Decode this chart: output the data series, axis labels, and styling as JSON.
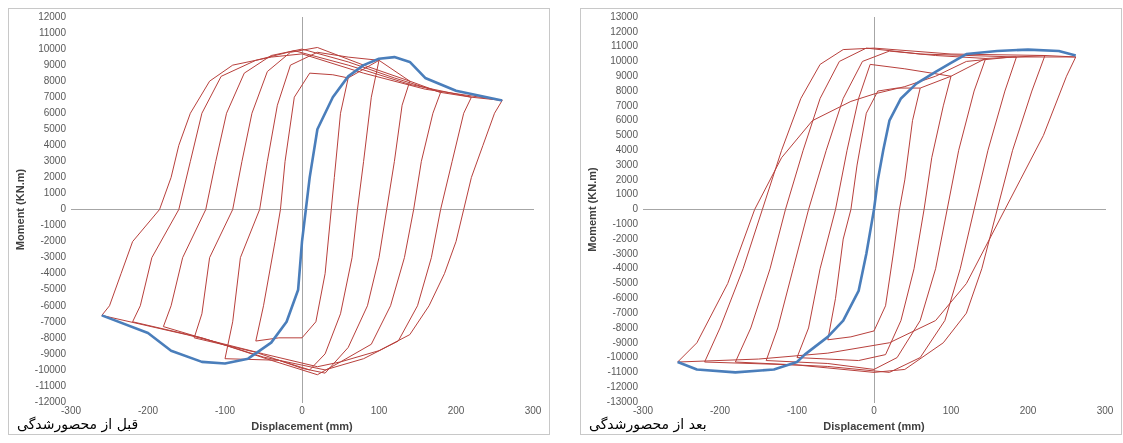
{
  "chart_data": [
    {
      "type": "line",
      "xlabel": "Displacement (mm)",
      "ylabel": "Moment (KN.m)",
      "annotations": [
        "قبل از محصورشدگی"
      ],
      "xlim": [
        -300,
        300
      ],
      "xticks": [
        -300,
        -200,
        -100,
        0,
        100,
        200,
        300
      ],
      "ylim": [
        -12000,
        12000
      ],
      "yticks": [
        -12000,
        -11000,
        -10000,
        -9000,
        -8000,
        -7000,
        -6000,
        -5000,
        -4000,
        -3000,
        -2000,
        -1000,
        0,
        1000,
        2000,
        3000,
        4000,
        5000,
        6000,
        7000,
        8000,
        9000,
        10000,
        11000,
        12000
      ],
      "series": [
        {
          "color": "#b8403c",
          "x": [
            60,
            50,
            42,
            38,
            30,
            18,
            0,
            -30,
            -60,
            -50,
            -35,
            -28,
            -22,
            -10,
            10,
            40,
            60,
            100,
            90,
            80,
            72,
            65,
            50,
            30,
            10,
            -30,
            -100,
            -90,
            -80,
            -55,
            -45,
            -32,
            -15,
            20,
            60,
            100,
            140,
            130,
            120,
            110,
            100,
            85,
            60,
            30,
            0,
            -60,
            -140,
            -130,
            -120,
            -90,
            -78,
            -65,
            -45,
            -15,
            20,
            80,
            140,
            180,
            170,
            155,
            145,
            133,
            115,
            90,
            50,
            20,
            -40,
            -110,
            -180,
            -170,
            -155,
            -125,
            -112,
            -98,
            -75,
            -40,
            0,
            60,
            120,
            180,
            220,
            210,
            195,
            180,
            168,
            150,
            125,
            80,
            30,
            -50,
            -130,
            -220,
            -210,
            -195,
            -160,
            -145,
            -130,
            -105,
            -60,
            -10,
            60,
            140,
            220,
            260,
            250,
            235,
            220,
            210,
            200,
            185,
            165,
            140,
            100,
            50,
            20,
            -50,
            -150,
            -260,
            -250,
            -235,
            -220,
            -185,
            -170,
            -160,
            -145,
            -120,
            -90,
            -40,
            0,
            80,
            160,
            260
          ],
          "values": [
            8200,
            6000,
            2000,
            0,
            -4000,
            -7000,
            -8000,
            -8000,
            -8200,
            -6000,
            -2000,
            0,
            3000,
            7000,
            8500,
            8400,
            8200,
            9300,
            7000,
            3000,
            0,
            -3000,
            -6500,
            -9000,
            -10000,
            -9400,
            -9300,
            -7000,
            -3000,
            0,
            3000,
            6500,
            9000,
            9800,
            9500,
            9300,
            8000,
            6500,
            3000,
            0,
            -3000,
            -6000,
            -8600,
            -10200,
            -9900,
            -8900,
            -8000,
            -6500,
            -3000,
            0,
            3000,
            6000,
            8600,
            9800,
            10100,
            9000,
            8000,
            7300,
            6000,
            3000,
            0,
            -3000,
            -6000,
            -8400,
            -9500,
            -10300,
            -9400,
            -8300,
            -7300,
            -6000,
            -3000,
            0,
            3000,
            6000,
            8500,
            9600,
            10000,
            9200,
            8200,
            7300,
            7000,
            6000,
            3000,
            0,
            -3000,
            -6000,
            -8200,
            -9300,
            -10000,
            -9200,
            -8000,
            -7000,
            -6000,
            -3000,
            0,
            3000,
            6000,
            8300,
            9300,
            9900,
            9000,
            7800,
            7000,
            6800,
            6000,
            4000,
            2000,
            0,
            -2000,
            -4000,
            -6000,
            -7800,
            -8800,
            -9500,
            -9800,
            -9000,
            -7800,
            -6600,
            -6000,
            -4000,
            -2000,
            0,
            2000,
            4000,
            6000,
            8000,
            9000,
            9500,
            9700,
            8500,
            7500,
            6800
          ]
        },
        {
          "color": "#4a7ebb",
          "x": [
            -260,
            -200,
            -170,
            -130,
            -100,
            -70,
            -40,
            -20,
            -5,
            0,
            5,
            10,
            20,
            40,
            60,
            80,
            100,
            120,
            140,
            160,
            200,
            260
          ],
          "values": [
            -6600,
            -7700,
            -8800,
            -9500,
            -9600,
            -9300,
            -8300,
            -7000,
            -5000,
            -2000,
            0,
            2000,
            5000,
            7000,
            8300,
            9000,
            9400,
            9500,
            9200,
            8200,
            7400,
            6800
          ]
        }
      ]
    },
    {
      "type": "line",
      "xlabel": "Displacement (mm)",
      "ylabel": "Momemt (KN.m)",
      "annotations": [
        "بعد از محصورشدگی"
      ],
      "xlim": [
        -300,
        300
      ],
      "xticks": [
        -300,
        -200,
        -100,
        0,
        100,
        200,
        300
      ],
      "ylim": [
        -13000,
        13000
      ],
      "yticks": [
        -13000,
        -12000,
        -11000,
        -10000,
        -9000,
        -8000,
        -7000,
        -6000,
        -5000,
        -4000,
        -3000,
        -2000,
        -1000,
        0,
        1000,
        2000,
        3000,
        4000,
        5000,
        6000,
        7000,
        8000,
        9000,
        10000,
        11000,
        12000,
        13000
      ],
      "series": [
        {
          "color": "#b8403c",
          "x": [
            60,
            50,
            40,
            33,
            25,
            15,
            0,
            -30,
            -60,
            -50,
            -40,
            -30,
            -22,
            -10,
            5,
            30,
            60,
            100,
            90,
            75,
            65,
            52,
            35,
            15,
            -20,
            -100,
            -85,
            -70,
            -50,
            -35,
            -20,
            -5,
            40,
            100,
            145,
            130,
            110,
            95,
            80,
            60,
            30,
            0,
            -60,
            -140,
            -125,
            -105,
            -85,
            -62,
            -40,
            -15,
            20,
            80,
            145,
            185,
            170,
            148,
            130,
            112,
            92,
            60,
            20,
            -60,
            -180,
            -160,
            -135,
            -115,
            -92,
            -70,
            -45,
            -10,
            60,
            185,
            222,
            205,
            180,
            160,
            140,
            120,
            90,
            40,
            0,
            -100,
            -220,
            -200,
            -170,
            -145,
            -120,
            -95,
            -70,
            -40,
            0,
            100,
            222,
            262,
            250,
            220,
            190,
            170,
            150,
            120,
            80,
            20,
            -60,
            -150,
            -255,
            -230,
            -190,
            -155,
            -120,
            -80,
            -30,
            0,
            40,
            80,
            120,
            180,
            262
          ],
          "values": [
            8200,
            6000,
            2000,
            0,
            -3000,
            -6500,
            -8200,
            -8600,
            -8800,
            -6000,
            -2000,
            0,
            3000,
            6500,
            8000,
            8200,
            8200,
            9000,
            7000,
            3500,
            0,
            -4000,
            -7500,
            -9800,
            -10200,
            -10000,
            -8000,
            -4000,
            0,
            4000,
            7500,
            9800,
            9500,
            9000,
            10200,
            8000,
            4000,
            0,
            -4000,
            -7500,
            -10000,
            -10800,
            -10400,
            -10200,
            -8000,
            -4000,
            0,
            4000,
            7500,
            10000,
            10700,
            10400,
            10200,
            10300,
            8000,
            4000,
            0,
            -4000,
            -7500,
            -10000,
            -11000,
            -10600,
            -10300,
            -8000,
            -4000,
            0,
            4000,
            7500,
            10000,
            10900,
            10500,
            10300,
            10400,
            8000,
            4000,
            0,
            -4000,
            -7000,
            -9000,
            -10800,
            -11000,
            -10500,
            -10300,
            -8000,
            -4000,
            0,
            4000,
            7500,
            9800,
            10800,
            10900,
            10500,
            10400,
            10300,
            9000,
            5000,
            2000,
            0,
            -2000,
            -5000,
            -7500,
            -9000,
            -9700,
            -10100,
            -10300,
            -9000,
            -5000,
            0,
            3500,
            6000,
            7300,
            7800,
            8300,
            9000,
            10000,
            10300,
            10300
          ]
        },
        {
          "color": "#4a7ebb",
          "x": [
            -255,
            -230,
            -180,
            -130,
            -100,
            -90,
            -60,
            -40,
            -20,
            -10,
            0,
            5,
            12,
            20,
            35,
            55,
            80,
            100,
            120,
            160,
            200,
            240,
            262
          ],
          "values": [
            -10300,
            -10800,
            -11000,
            -10800,
            -10300,
            -9800,
            -8600,
            -7500,
            -5500,
            -3000,
            0,
            2000,
            4000,
            6000,
            7500,
            8500,
            9300,
            9900,
            10500,
            10700,
            10800,
            10700,
            10400
          ]
        }
      ]
    }
  ]
}
